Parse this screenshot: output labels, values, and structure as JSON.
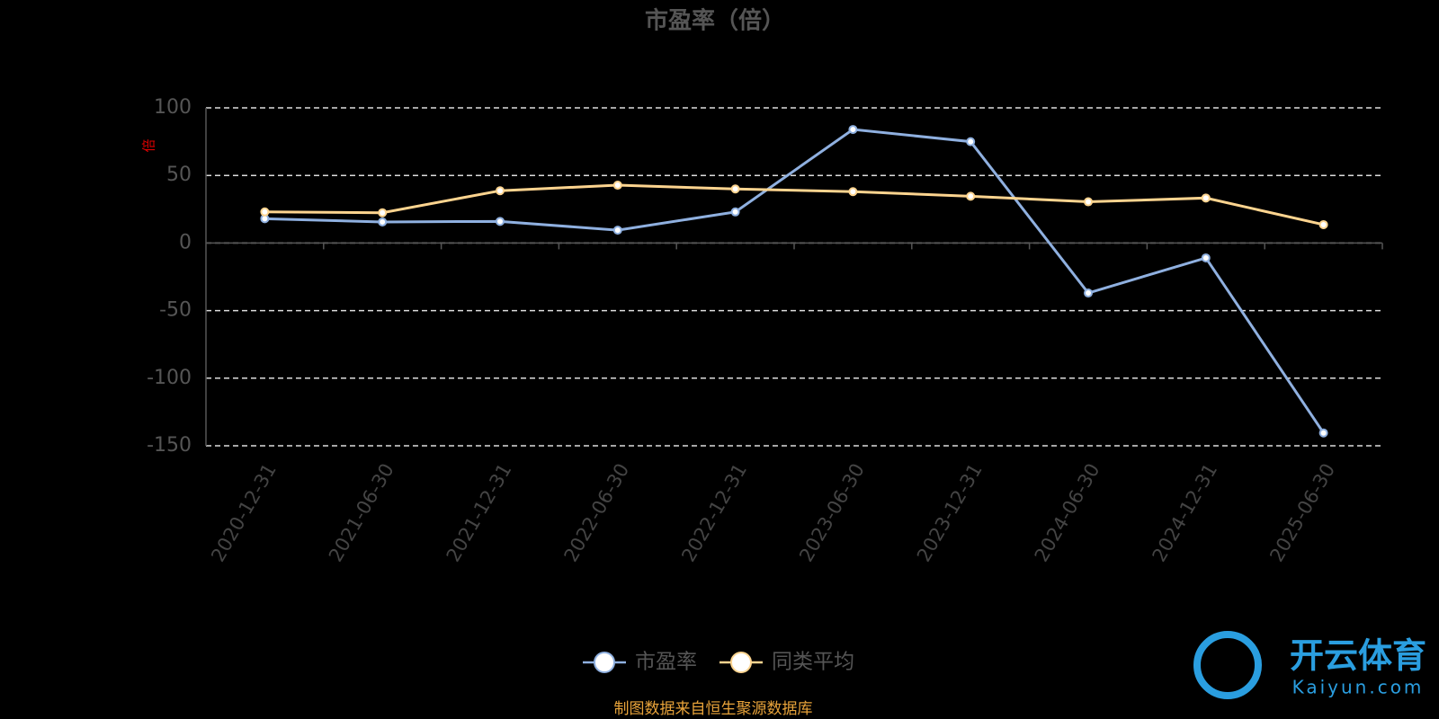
{
  "chart_data": {
    "type": "line",
    "title": "市盈率（倍）",
    "y_label": "倍",
    "categories": [
      "2020-12-31",
      "2021-06-30",
      "2021-12-31",
      "2022-06-30",
      "2022-12-31",
      "2023-06-30",
      "2023-12-31",
      "2024-06-30",
      "2024-12-31",
      "2025-06-30"
    ],
    "series": [
      {
        "name": "市盈率",
        "color": "#8fb0e0",
        "values": [
          18,
          15.6,
          16,
          9.5,
          23,
          84,
          75,
          -37,
          -11,
          -140.5
        ]
      },
      {
        "name": "同类平均",
        "color": "#fdd48f",
        "values": [
          23,
          22.4,
          38.7,
          42.8,
          40,
          38,
          34.6,
          30.5,
          33.3,
          13.6
        ]
      }
    ],
    "ylim": [
      -150,
      100
    ],
    "yticks": [
      -150,
      -100,
      -50,
      0,
      50,
      100
    ],
    "grid": true,
    "source": "制图数据来自恒生聚源数据库",
    "watermark": {
      "brand": "开云体育",
      "site": "Kaiyun.com"
    }
  }
}
